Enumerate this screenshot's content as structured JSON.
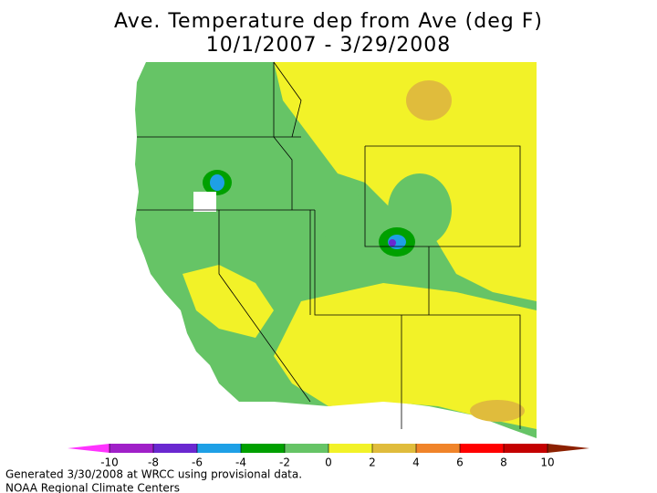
{
  "title": "Ave. Temperature dep from Ave (deg F)",
  "subtitle": "10/1/2007 - 3/29/2008",
  "legend": {
    "ticks": [
      -10,
      -8,
      -6,
      -4,
      -2,
      0,
      2,
      4,
      6,
      8,
      10
    ],
    "colors": [
      "#ff33ff",
      "#a020c8",
      "#6a28d0",
      "#1ea0e6",
      "#00a000",
      "#66c466",
      "#f2f228",
      "#e0bc3c",
      "#f0842a",
      "#ff0000",
      "#c40000",
      "#8c2000"
    ]
  },
  "footer": [
    "Generated 3/30/2008 at WRCC using provisional data.",
    "NOAA Regional Climate Centers"
  ]
}
